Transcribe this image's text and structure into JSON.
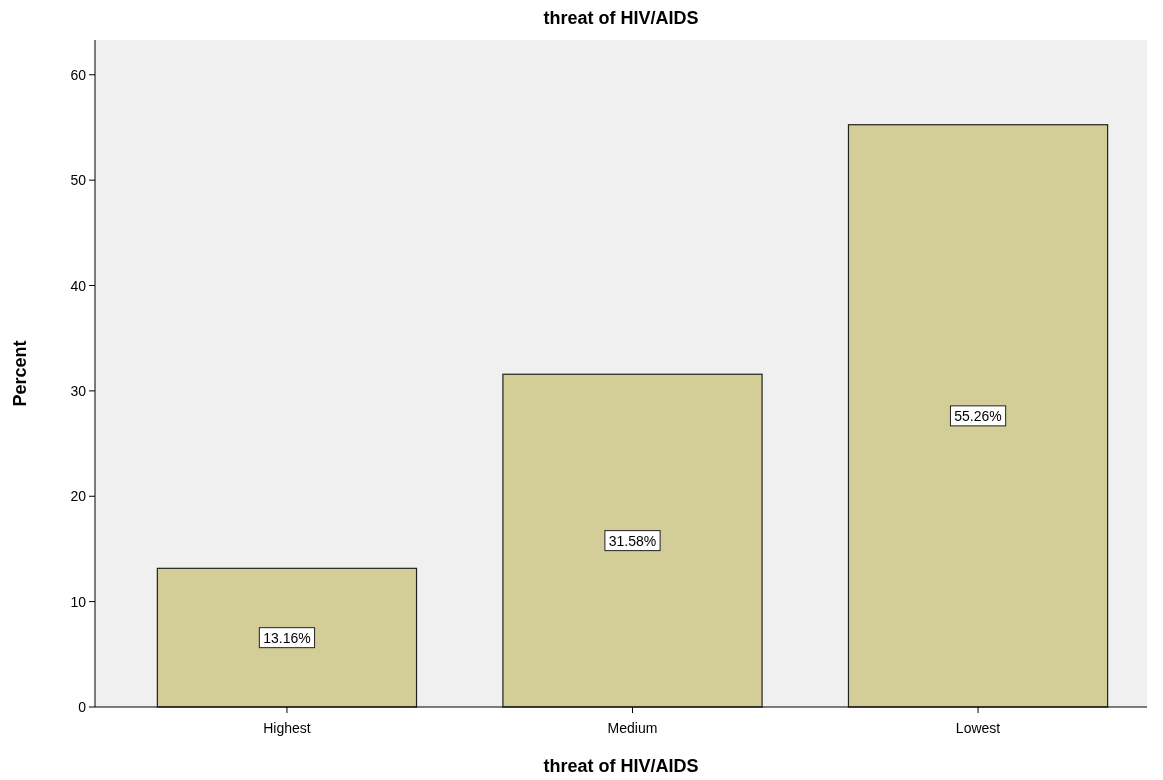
{
  "chart_data": {
    "type": "bar",
    "title": "threat of HIV/AIDS",
    "xlabel": "threat of HIV/AIDS",
    "ylabel": "Percent",
    "categories": [
      "Highest",
      "Medium",
      "Lowest"
    ],
    "values": [
      13.16,
      31.58,
      55.26
    ],
    "value_labels": [
      "13.16%",
      "31.58%",
      "55.26%"
    ],
    "color": "#d3ce97",
    "ylim": [
      0,
      63.3
    ],
    "yticks": [
      0,
      10,
      20,
      30,
      40,
      50,
      60
    ],
    "grid": false
  }
}
